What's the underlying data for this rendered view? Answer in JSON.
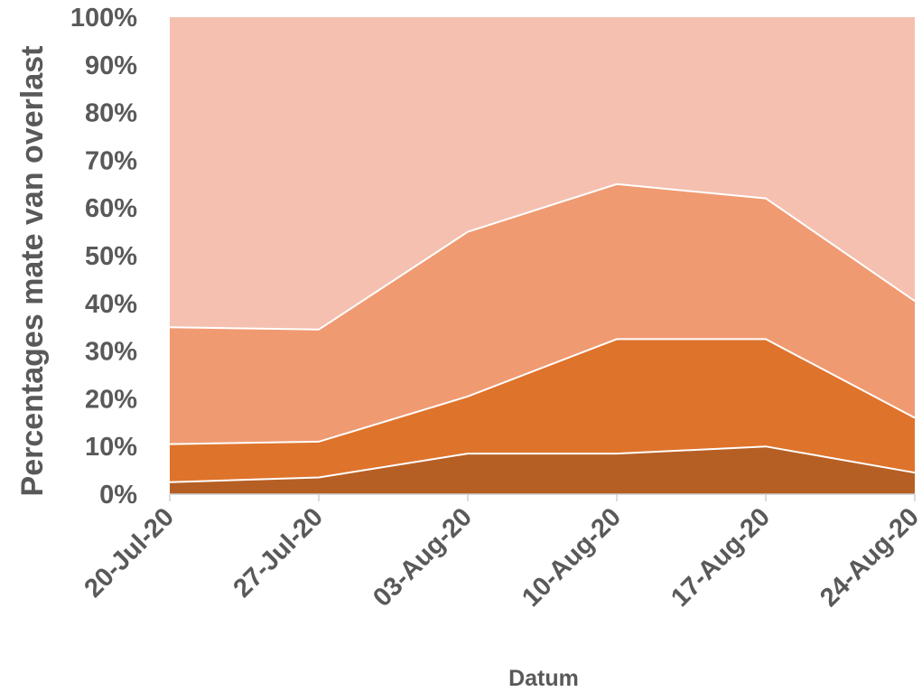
{
  "chart_data": {
    "type": "area",
    "stacked": true,
    "title": "",
    "xlabel": "Datum",
    "ylabel": "Percentages mate van overlast",
    "x": [
      "20-Jul-20",
      "27-Jul-20",
      "03-Aug-20",
      "10-Aug-20",
      "17-Aug-20",
      "24-Aug-20"
    ],
    "y_ticks": [
      "0%",
      "10%",
      "20%",
      "30%",
      "40%",
      "50%",
      "60%",
      "70%",
      "80%",
      "90%",
      "100%"
    ],
    "ylim": [
      0,
      100
    ],
    "grid": false,
    "legend": "none",
    "series": [
      {
        "values": [
          2.5,
          3.5,
          8.5,
          8.5,
          10,
          4.5
        ],
        "color": "#b65f25"
      },
      {
        "values": [
          8,
          7.5,
          12,
          24,
          22.5,
          11.5
        ],
        "color": "#de732c"
      },
      {
        "values": [
          24.5,
          23.5,
          34.5,
          32.5,
          29.5,
          24.5
        ],
        "color": "#f09a72"
      },
      {
        "values": [
          65,
          65.5,
          45,
          35,
          38,
          59.5
        ],
        "color": "#f5c0b0"
      }
    ]
  }
}
